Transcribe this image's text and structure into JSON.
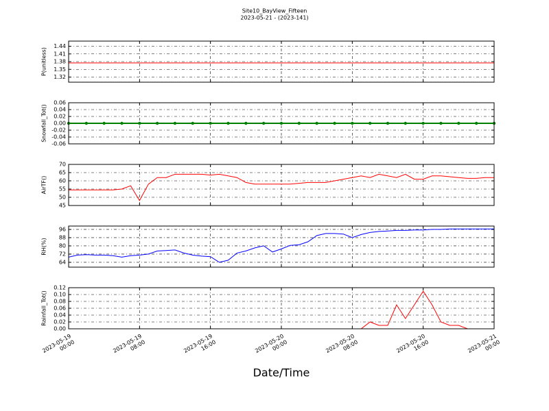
{
  "title": "Site10_BayView_Fifteen",
  "subtitle": "2023-05-21 - (2023-141)",
  "xlabel": "Date/Time",
  "chart_data": [
    {
      "type": "line",
      "ylabel": "P(unitless)",
      "color": "#ff0000",
      "x": [
        "2023-05-19 00:00",
        "2023-05-19 02:00",
        "2023-05-19 04:00",
        "2023-05-19 06:00",
        "2023-05-19 08:00",
        "2023-05-19 10:00",
        "2023-05-19 12:00",
        "2023-05-19 14:00",
        "2023-05-19 16:00",
        "2023-05-19 18:00",
        "2023-05-19 20:00",
        "2023-05-19 22:00",
        "2023-05-20 00:00",
        "2023-05-20 02:00",
        "2023-05-20 04:00",
        "2023-05-20 06:00",
        "2023-05-20 08:00",
        "2023-05-20 10:00",
        "2023-05-20 12:00",
        "2023-05-20 14:00",
        "2023-05-20 16:00",
        "2023-05-20 18:00",
        "2023-05-20 20:00",
        "2023-05-20 22:00",
        "2023-05-21 00:00"
      ],
      "values": [
        1.375,
        1.375,
        1.375,
        1.375,
        1.375,
        1.375,
        1.375,
        1.375,
        1.375,
        1.375,
        1.375,
        1.375,
        1.375,
        1.375,
        1.375,
        1.375,
        1.375,
        1.375,
        1.375,
        1.375,
        1.375,
        1.375,
        1.375,
        1.375,
        1.375
      ],
      "ylim": [
        1.3,
        1.46
      ],
      "yticks": [
        1.32,
        1.35,
        1.38,
        1.41,
        1.44
      ],
      "xlim": [
        "2023-05-19 00:00",
        "2023-05-21 00:00"
      ],
      "xticks": [
        "2023-05-19 00:00",
        "2023-05-19 08:00",
        "2023-05-19 16:00",
        "2023-05-20 00:00",
        "2023-05-20 08:00",
        "2023-05-20 16:00",
        "2023-05-21 00:00"
      ],
      "grid": true
    },
    {
      "type": "line",
      "ylabel": "Snowfall_Tot()",
      "color": "#008000",
      "markers": true,
      "x": [
        "2023-05-19 00:00",
        "2023-05-19 02:00",
        "2023-05-19 04:00",
        "2023-05-19 06:00",
        "2023-05-19 08:00",
        "2023-05-19 10:00",
        "2023-05-19 12:00",
        "2023-05-19 14:00",
        "2023-05-19 16:00",
        "2023-05-19 18:00",
        "2023-05-19 20:00",
        "2023-05-19 22:00",
        "2023-05-20 00:00",
        "2023-05-20 02:00",
        "2023-05-20 04:00",
        "2023-05-20 06:00",
        "2023-05-20 08:00",
        "2023-05-20 10:00",
        "2023-05-20 12:00",
        "2023-05-20 14:00",
        "2023-05-20 16:00",
        "2023-05-20 18:00",
        "2023-05-20 20:00",
        "2023-05-20 22:00",
        "2023-05-21 00:00"
      ],
      "values": [
        0,
        0,
        0,
        0,
        0,
        0,
        0,
        0,
        0,
        0,
        0,
        0,
        0,
        0,
        0,
        0,
        0,
        0,
        0,
        0,
        0,
        0,
        0,
        0,
        0
      ],
      "ylim": [
        -0.06,
        0.06
      ],
      "yticks": [
        -0.06,
        -0.04,
        -0.02,
        {
          "value": 0,
          "label": "0.00"
        },
        0.02,
        0.04,
        0.06
      ],
      "xlim": [
        "2023-05-19 00:00",
        "2023-05-21 00:00"
      ],
      "xticks": [
        "2023-05-19 00:00",
        "2023-05-19 08:00",
        "2023-05-19 16:00",
        "2023-05-20 00:00",
        "2023-05-20 08:00",
        "2023-05-20 16:00",
        "2023-05-21 00:00"
      ],
      "grid": true
    },
    {
      "type": "line",
      "ylabel": "AirTF()",
      "color": "#ff0000",
      "x": [
        "2023-05-19 00:00",
        "2023-05-19 01:00",
        "2023-05-19 02:00",
        "2023-05-19 03:00",
        "2023-05-19 04:00",
        "2023-05-19 05:00",
        "2023-05-19 06:00",
        "2023-05-19 07:00",
        "2023-05-19 08:00",
        "2023-05-19 09:00",
        "2023-05-19 10:00",
        "2023-05-19 11:00",
        "2023-05-19 12:00",
        "2023-05-19 13:00",
        "2023-05-19 14:00",
        "2023-05-19 15:00",
        "2023-05-19 16:00",
        "2023-05-19 17:00",
        "2023-05-19 18:00",
        "2023-05-19 19:00",
        "2023-05-19 20:00",
        "2023-05-19 21:00",
        "2023-05-19 22:00",
        "2023-05-19 23:00",
        "2023-05-20 00:00",
        "2023-05-20 01:00",
        "2023-05-20 02:00",
        "2023-05-20 03:00",
        "2023-05-20 04:00",
        "2023-05-20 05:00",
        "2023-05-20 06:00",
        "2023-05-20 07:00",
        "2023-05-20 08:00",
        "2023-05-20 09:00",
        "2023-05-20 10:00",
        "2023-05-20 11:00",
        "2023-05-20 12:00",
        "2023-05-20 13:00",
        "2023-05-20 14:00",
        "2023-05-20 15:00",
        "2023-05-20 16:00",
        "2023-05-20 17:00",
        "2023-05-20 18:00",
        "2023-05-20 19:00",
        "2023-05-20 20:00",
        "2023-05-20 21:00",
        "2023-05-20 22:00",
        "2023-05-20 23:00",
        "2023-05-21 00:00"
      ],
      "values": [
        54.5,
        54.5,
        54.5,
        54.5,
        54.5,
        54.5,
        55,
        57,
        48,
        58,
        62,
        62,
        64,
        64,
        64,
        64,
        63.5,
        64,
        63,
        62,
        59,
        58,
        58,
        58,
        58,
        58,
        58.5,
        59,
        59,
        59,
        60,
        61,
        62,
        63,
        62,
        64,
        63,
        62,
        64,
        61,
        61,
        63,
        63,
        62.5,
        62,
        61.5,
        61.5,
        62,
        62
      ],
      "ylim": [
        45,
        70
      ],
      "yticks": [
        45,
        50,
        55,
        60,
        65,
        70
      ],
      "xlim": [
        "2023-05-19 00:00",
        "2023-05-21 00:00"
      ],
      "xticks": [
        "2023-05-19 00:00",
        "2023-05-19 08:00",
        "2023-05-19 16:00",
        "2023-05-20 00:00",
        "2023-05-20 08:00",
        "2023-05-20 16:00",
        "2023-05-21 00:00"
      ],
      "grid": true
    },
    {
      "type": "line",
      "ylabel": "RH(%)",
      "color": "#0000ff",
      "x": [
        "2023-05-19 00:00",
        "2023-05-19 01:00",
        "2023-05-19 02:00",
        "2023-05-19 03:00",
        "2023-05-19 04:00",
        "2023-05-19 05:00",
        "2023-05-19 06:00",
        "2023-05-19 07:00",
        "2023-05-19 08:00",
        "2023-05-19 09:00",
        "2023-05-19 10:00",
        "2023-05-19 11:00",
        "2023-05-19 12:00",
        "2023-05-19 13:00",
        "2023-05-19 14:00",
        "2023-05-19 15:00",
        "2023-05-19 16:00",
        "2023-05-19 17:00",
        "2023-05-19 18:00",
        "2023-05-19 19:00",
        "2023-05-19 20:00",
        "2023-05-19 21:00",
        "2023-05-19 22:00",
        "2023-05-19 23:00",
        "2023-05-20 00:00",
        "2023-05-20 01:00",
        "2023-05-20 02:00",
        "2023-05-20 03:00",
        "2023-05-20 04:00",
        "2023-05-20 05:00",
        "2023-05-20 06:00",
        "2023-05-20 07:00",
        "2023-05-20 08:00",
        "2023-05-20 09:00",
        "2023-05-20 10:00",
        "2023-05-20 11:00",
        "2023-05-20 12:00",
        "2023-05-20 13:00",
        "2023-05-20 14:00",
        "2023-05-20 15:00",
        "2023-05-20 16:00",
        "2023-05-20 17:00",
        "2023-05-20 18:00",
        "2023-05-20 19:00",
        "2023-05-20 20:00",
        "2023-05-20 21:00",
        "2023-05-20 22:00",
        "2023-05-20 23:00",
        "2023-05-21 00:00"
      ],
      "values": [
        69,
        71,
        71.5,
        71,
        71,
        70.5,
        69,
        70.5,
        71,
        72,
        75,
        75.5,
        76,
        73,
        71,
        70,
        69.5,
        64,
        66,
        73,
        75,
        78,
        80,
        74,
        77,
        80.5,
        81,
        84,
        90,
        92,
        92,
        91.5,
        88,
        91,
        93,
        94,
        94.5,
        95,
        95,
        95.5,
        95.5,
        96,
        96,
        96.5,
        96.5,
        96.5,
        96.5,
        96.5,
        96.5
      ],
      "ylim": [
        59.3,
        99.3
      ],
      "yticks": [
        64,
        72,
        80,
        88,
        96
      ],
      "xlim": [
        "2023-05-19 00:00",
        "2023-05-21 00:00"
      ],
      "xticks": [
        "2023-05-19 00:00",
        "2023-05-19 08:00",
        "2023-05-19 16:00",
        "2023-05-20 00:00",
        "2023-05-20 08:00",
        "2023-05-20 16:00",
        "2023-05-21 00:00"
      ],
      "grid": true
    },
    {
      "type": "line",
      "ylabel": "Rainfall_Tot()",
      "color": "#ff0000",
      "x": [
        "2023-05-19 00:00",
        "2023-05-19 01:00",
        "2023-05-19 02:00",
        "2023-05-19 03:00",
        "2023-05-19 04:00",
        "2023-05-19 05:00",
        "2023-05-19 06:00",
        "2023-05-19 07:00",
        "2023-05-19 08:00",
        "2023-05-19 09:00",
        "2023-05-19 10:00",
        "2023-05-19 11:00",
        "2023-05-19 12:00",
        "2023-05-19 13:00",
        "2023-05-19 14:00",
        "2023-05-19 15:00",
        "2023-05-19 16:00",
        "2023-05-19 17:00",
        "2023-05-19 18:00",
        "2023-05-19 19:00",
        "2023-05-19 20:00",
        "2023-05-19 21:00",
        "2023-05-19 22:00",
        "2023-05-19 23:00",
        "2023-05-20 00:00",
        "2023-05-20 01:00",
        "2023-05-20 02:00",
        "2023-05-20 03:00",
        "2023-05-20 04:00",
        "2023-05-20 05:00",
        "2023-05-20 06:00",
        "2023-05-20 07:00",
        "2023-05-20 08:00",
        "2023-05-20 09:00",
        "2023-05-20 10:00",
        "2023-05-20 11:00",
        "2023-05-20 12:00",
        "2023-05-20 13:00",
        "2023-05-20 14:00",
        "2023-05-20 15:00",
        "2023-05-20 16:00",
        "2023-05-20 17:00",
        "2023-05-20 18:00",
        "2023-05-20 19:00",
        "2023-05-20 20:00",
        "2023-05-20 21:00",
        "2023-05-20 22:00",
        "2023-05-20 23:00",
        "2023-05-21 00:00"
      ],
      "values": [
        0,
        0,
        0,
        0,
        0,
        0,
        0,
        0,
        0,
        0,
        0,
        0,
        0,
        0,
        0,
        0,
        0,
        0,
        0,
        0,
        0,
        0,
        0,
        0,
        0,
        0,
        0,
        0,
        0,
        0,
        0,
        0,
        0,
        0,
        0.02,
        0.01,
        0.01,
        0.07,
        0.03,
        0.07,
        0.11,
        0.07,
        0.02,
        0.01,
        0.01,
        0,
        0,
        0,
        0
      ],
      "ylim": [
        0,
        0.12
      ],
      "yticks": [
        {
          "value": 0,
          "label": "0.00"
        },
        0.02,
        0.04,
        0.06,
        0.08,
        {
          "value": 0.1,
          "label": "0.10"
        },
        0.12
      ],
      "xlim": [
        "2023-05-19 00:00",
        "2023-05-21 00:00"
      ],
      "xticks": [
        {
          "value": "2023-05-19 00:00",
          "label": "2023-05-19\n00:00"
        },
        {
          "value": "2023-05-19 08:00",
          "label": "2023-05-19\n08:00"
        },
        {
          "value": "2023-05-19 16:00",
          "label": "2023-05-19\n16:00"
        },
        {
          "value": "2023-05-20 00:00",
          "label": "2023-05-20\n00:00"
        },
        {
          "value": "2023-05-20 08:00",
          "label": "2023-05-20\n08:00"
        },
        {
          "value": "2023-05-20 16:00",
          "label": "2023-05-20\n16:00"
        },
        {
          "value": "2023-05-21 00:00",
          "label": "2023-05-21\n00:00"
        }
      ],
      "grid": true
    }
  ]
}
